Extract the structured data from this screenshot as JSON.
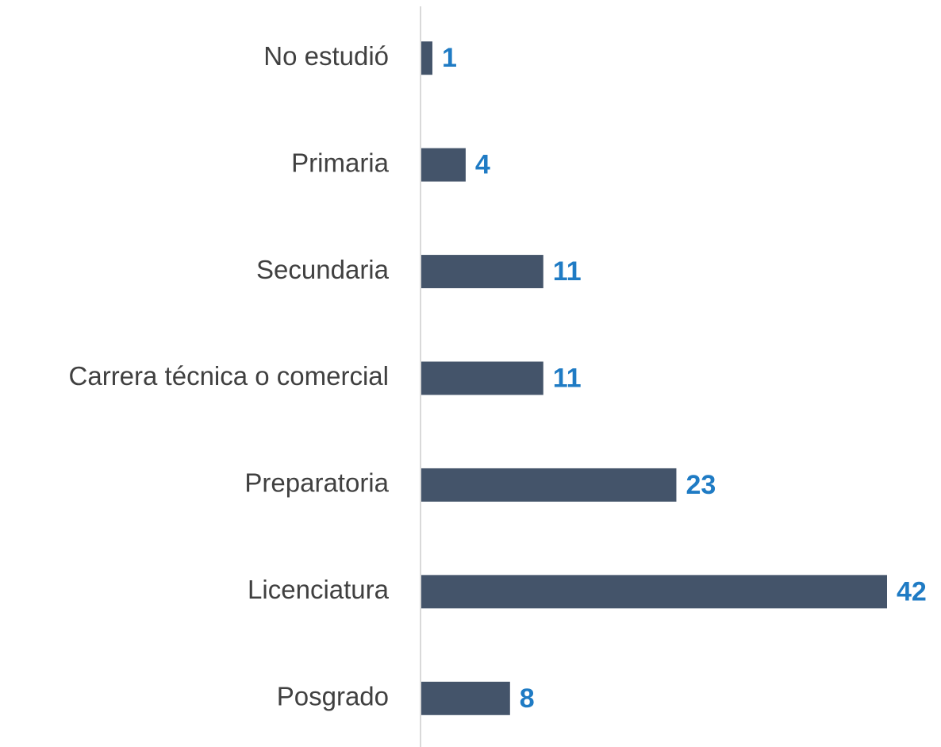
{
  "chart_data": {
    "type": "bar",
    "orientation": "horizontal",
    "categories": [
      "No estudió",
      "Primaria",
      "Secundaria",
      "Carrera técnica o comercial",
      "Preparatoria",
      "Licenciatura",
      "Posgrado"
    ],
    "values": [
      1,
      4,
      11,
      11,
      23,
      42,
      8
    ],
    "color": "#44546a",
    "label_color": "#1f7bc4"
  }
}
